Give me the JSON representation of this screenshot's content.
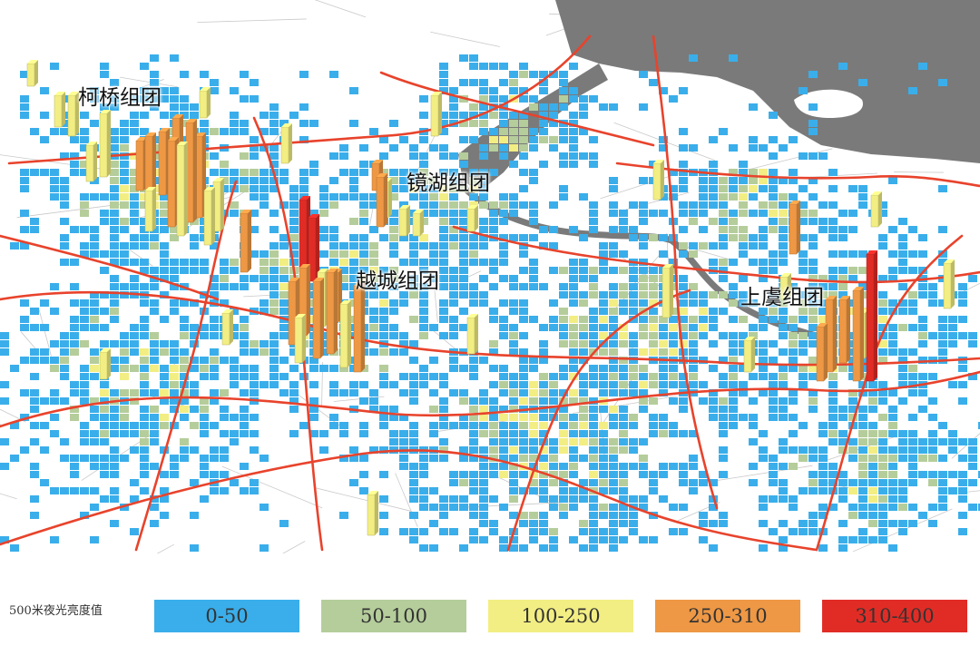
{
  "clusters": [
    {
      "id": "keqiao",
      "label": "柯桥组团"
    },
    {
      "id": "jinghu",
      "label": "镜湖组团"
    },
    {
      "id": "yuecheng",
      "label": "越城组团"
    },
    {
      "id": "shangyu",
      "label": "上虞组团"
    }
  ],
  "legend": {
    "title": "500米夜光亮度值",
    "items": [
      {
        "label": "0-50",
        "color": "#3aaeea"
      },
      {
        "label": "50-100",
        "color": "#b5cd9b"
      },
      {
        "label": "100-250",
        "color": "#f2ee83"
      },
      {
        "label": "250-310",
        "color": "#ee9845"
      },
      {
        "label": "310-400",
        "color": "#e12c26"
      }
    ]
  },
  "colors": {
    "water": "#7a7a7a",
    "roads": "#e8432c",
    "minor_roads": "#c9c9c9",
    "background": "#ffffff"
  }
}
